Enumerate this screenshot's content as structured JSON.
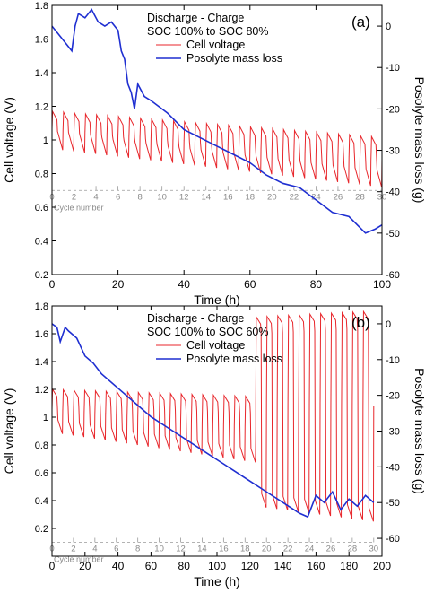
{
  "chart_data": [
    {
      "type": "line",
      "panel_label": "(a)",
      "xlabel": "Time (h)",
      "ylabel_left": "Cell voltage (V)",
      "ylabel_right": "Posolyte mass loss (g)",
      "xlim": [
        0,
        100
      ],
      "ylim_left": [
        0.2,
        1.8
      ],
      "ylim_right": [
        -60,
        5
      ],
      "x_ticks": [
        0,
        20,
        40,
        60,
        80,
        100
      ],
      "y_ticks_left": [
        0.2,
        0.4,
        0.6,
        0.8,
        1.0,
        1.2,
        1.4,
        1.6,
        1.8
      ],
      "y_tick_labels_left": [
        "0.2",
        "0.4",
        "0.6",
        "0.8",
        "1",
        "1.2",
        "1.4",
        "1.6",
        "1.8"
      ],
      "y_ticks_right": [
        0,
        -10,
        -20,
        -30,
        -40,
        -50,
        -60
      ],
      "cycle_axis": {
        "label": "Cycle number",
        "ticks": [
          0,
          2,
          4,
          6,
          8,
          10,
          12,
          14,
          16,
          18,
          20,
          22,
          24,
          26,
          28,
          30
        ],
        "y_value": 0.7,
        "x_end": 100
      },
      "legend": {
        "title_lines": [
          "Discharge - Charge",
          "SOC 100% to SOC 80%"
        ],
        "entries": [
          "Cell voltage",
          "Posolyte mass loss"
        ]
      },
      "series": [
        {
          "name": "Cell voltage",
          "color": "#e8262b",
          "axis": "left",
          "cycles": 30,
          "t_end": 100,
          "charge_top": [
            1.17,
            1.02
          ],
          "discharge_bottom": [
            0.94,
            0.72
          ]
        },
        {
          "name": "Posolyte mass loss",
          "color": "#1f2fd1",
          "axis": "right",
          "x": [
            0,
            2,
            4,
            6,
            7,
            8,
            10,
            12,
            14,
            16,
            18,
            20,
            21,
            22,
            23,
            24,
            25,
            26,
            28,
            30,
            35,
            40,
            45,
            50,
            55,
            60,
            65,
            70,
            75,
            80,
            85,
            90,
            95,
            98,
            100
          ],
          "y": [
            0,
            -2,
            -4,
            -6,
            0,
            3,
            2,
            4,
            1,
            0,
            1,
            -1,
            -6,
            -8,
            -14,
            -16,
            -20,
            -14,
            -17,
            -18,
            -21,
            -25,
            -27,
            -29,
            -31,
            -33,
            -36,
            -38,
            -39,
            -42,
            -45,
            -46,
            -50,
            -49,
            -48
          ]
        }
      ]
    },
    {
      "type": "line",
      "panel_label": "(b)",
      "xlabel": "Time (h)",
      "ylabel_left": "Cell voltage (V)",
      "ylabel_right": "Posolyte mass loss (g)",
      "xlim": [
        0,
        200
      ],
      "ylim_left": [
        0.0,
        1.8
      ],
      "ylim_right": [
        -65,
        5
      ],
      "x_ticks": [
        0,
        20,
        40,
        60,
        80,
        100,
        120,
        140,
        160,
        180,
        200
      ],
      "y_ticks_left": [
        0.2,
        0.4,
        0.6,
        0.8,
        1.0,
        1.2,
        1.4,
        1.6,
        1.8
      ],
      "y_tick_labels_left": [
        "0.2",
        "0.4",
        "0.6",
        "0.8",
        "1",
        "1.2",
        "1.4",
        "1.6",
        "1.8"
      ],
      "y_ticks_right": [
        0,
        -10,
        -20,
        -30,
        -40,
        -50,
        -60
      ],
      "cycle_axis": {
        "label": "Cycle number",
        "ticks": [
          0,
          2,
          4,
          6,
          8,
          10,
          12,
          14,
          16,
          18,
          20,
          22,
          24,
          26,
          28,
          30
        ],
        "y_value": 0.1,
        "x_end": 195
      },
      "legend": {
        "title_lines": [
          "Discharge - Charge",
          "SOC 100% to SOC 60%"
        ],
        "entries": [
          "Cell voltage",
          "Posolyte mass loss"
        ]
      },
      "series": [
        {
          "name": "Cell voltage",
          "color": "#e8262b",
          "axis": "left",
          "cycles": 30,
          "t_end": 195,
          "charge_top": [
            1.2,
            1.12
          ],
          "discharge_bottom": [
            0.88,
            0.55
          ],
          "late_charge_top": [
            1.72,
            1.76
          ],
          "late_discharge_bottom": [
            0.35,
            0.25
          ],
          "late_from_cycle": 19
        },
        {
          "name": "Posolyte mass loss",
          "color": "#1f2fd1",
          "axis": "right",
          "x": [
            0,
            3,
            5,
            8,
            10,
            15,
            20,
            25,
            30,
            40,
            50,
            60,
            70,
            80,
            90,
            100,
            110,
            120,
            130,
            140,
            150,
            155,
            160,
            165,
            170,
            175,
            180,
            185,
            190,
            195
          ],
          "y": [
            0,
            -1,
            -5,
            -1,
            -2,
            -4,
            -9,
            -11,
            -14,
            -18,
            -22,
            -26,
            -29,
            -32,
            -35,
            -38,
            -41,
            -44,
            -47,
            -50,
            -53,
            -54,
            -48,
            -50,
            -47,
            -52,
            -49,
            -51,
            -48,
            -50
          ]
        }
      ]
    }
  ]
}
